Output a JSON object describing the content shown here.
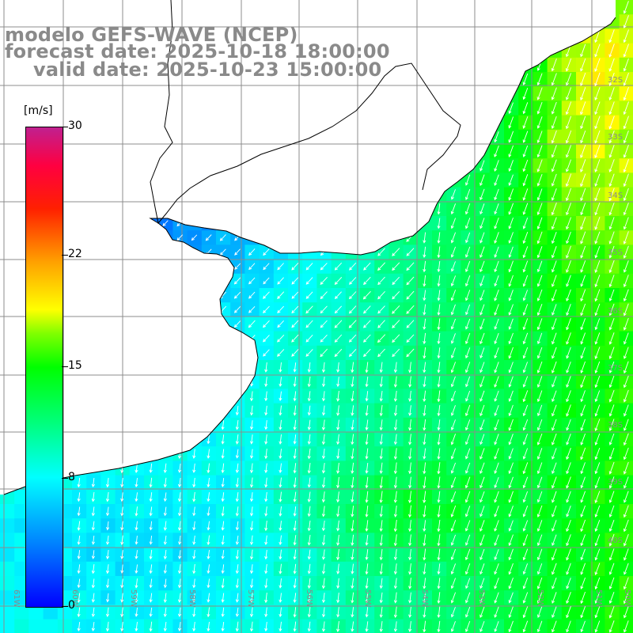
{
  "title": {
    "model": "modelo GEFS-WAVE (NCEP)",
    "forecast": "forecast date: 2025-10-18 18:00:00",
    "valid": "valid date: 2025-10-23 15:00:00"
  },
  "colorbar": {
    "units": "[m/s]",
    "ticks": [
      "30",
      "22",
      "15",
      "8",
      "0"
    ],
    "tick_values": [
      30,
      22,
      15,
      8,
      0
    ],
    "min": 0,
    "max": 30,
    "colors": [
      "#0000ff",
      "#0080ff",
      "#00ffff",
      "#00ff80",
      "#00ff00",
      "#80ff00",
      "#ffff00",
      "#ffa000",
      "#ff2000",
      "#ff0040",
      "#c0208f"
    ]
  },
  "axes": {
    "longitude_labels": [
      "61W",
      "60W",
      "59W",
      "58W",
      "57W",
      "56W",
      "55W",
      "54W",
      "53W",
      "52W",
      "51W",
      "50W"
    ],
    "latitude_labels": [
      "32S",
      "33S",
      "34S",
      "35S",
      "36S",
      "37S",
      "38S",
      "39S",
      "40S"
    ]
  },
  "map": {
    "land_color": "#ffffff",
    "grid_color": "#8c8c8c",
    "coast_color": "#000000",
    "arrow_color": "#ffffff"
  }
}
